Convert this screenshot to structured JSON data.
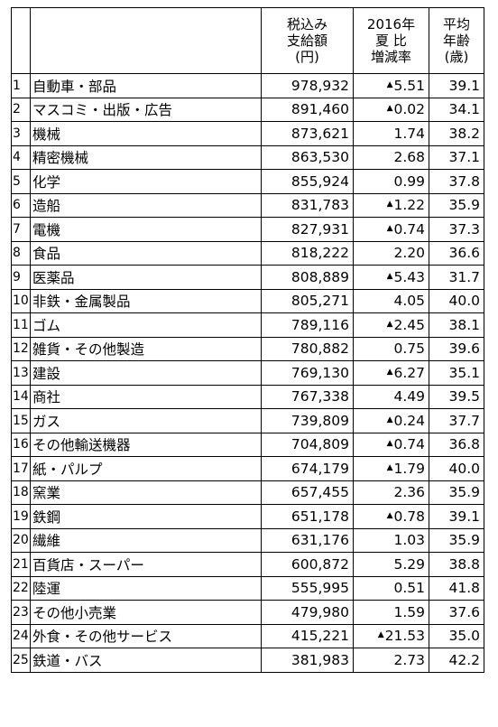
{
  "header": {
    "amount": [
      "税込み",
      "支給額",
      "(円)"
    ],
    "change": [
      "2016年",
      "夏 比",
      "増減率"
    ],
    "age": [
      "平均",
      "年齢",
      "(歳)"
    ]
  },
  "rows": [
    {
      "no": "1",
      "industry": "自動車・部品",
      "amount": "978,932",
      "neg": true,
      "change": "5.51",
      "age": "39.1"
    },
    {
      "no": "2",
      "industry": "マスコミ・出版・広告",
      "amount": "891,460",
      "neg": true,
      "change": "0.02",
      "age": "34.1"
    },
    {
      "no": "3",
      "industry": "機械",
      "amount": "873,621",
      "neg": false,
      "change": "1.74",
      "age": "38.2"
    },
    {
      "no": "4",
      "industry": "精密機械",
      "amount": "863,530",
      "neg": false,
      "change": "2.68",
      "age": "37.1"
    },
    {
      "no": "5",
      "industry": "化学",
      "amount": "855,924",
      "neg": false,
      "change": "0.99",
      "age": "37.8"
    },
    {
      "no": "6",
      "industry": "造船",
      "amount": "831,783",
      "neg": true,
      "change": "1.22",
      "age": "35.9"
    },
    {
      "no": "7",
      "industry": "電機",
      "amount": "827,931",
      "neg": true,
      "change": "0.74",
      "age": "37.3"
    },
    {
      "no": "8",
      "industry": "食品",
      "amount": "818,222",
      "neg": false,
      "change": "2.20",
      "age": "36.6"
    },
    {
      "no": "9",
      "industry": "医薬品",
      "amount": "808,889",
      "neg": true,
      "change": "5.43",
      "age": "31.7"
    },
    {
      "no": "10",
      "industry": "非鉄・金属製品",
      "amount": "805,271",
      "neg": false,
      "change": "4.05",
      "age": "40.0"
    },
    {
      "no": "11",
      "industry": "ゴム",
      "amount": "789,116",
      "neg": true,
      "change": "2.45",
      "age": "38.1"
    },
    {
      "no": "12",
      "industry": "雑貨・その他製造",
      "amount": "780,882",
      "neg": false,
      "change": "0.75",
      "age": "39.6"
    },
    {
      "no": "13",
      "industry": "建設",
      "amount": "769,130",
      "neg": true,
      "change": "6.27",
      "age": "35.1"
    },
    {
      "no": "14",
      "industry": "商社",
      "amount": "767,338",
      "neg": false,
      "change": "4.49",
      "age": "39.5"
    },
    {
      "no": "15",
      "industry": "ガス",
      "amount": "739,809",
      "neg": true,
      "change": "0.24",
      "age": "37.7"
    },
    {
      "no": "16",
      "industry": "その他輸送機器",
      "amount": "704,809",
      "neg": true,
      "change": "0.74",
      "age": "36.8"
    },
    {
      "no": "17",
      "industry": "紙・パルプ",
      "amount": "674,179",
      "neg": true,
      "change": "1.79",
      "age": "40.0"
    },
    {
      "no": "18",
      "industry": "窯業",
      "amount": "657,455",
      "neg": false,
      "change": "2.36",
      "age": "35.9"
    },
    {
      "no": "19",
      "industry": "鉄鋼",
      "amount": "651,178",
      "neg": true,
      "change": "0.78",
      "age": "39.1"
    },
    {
      "no": "20",
      "industry": "繊維",
      "amount": "631,176",
      "neg": false,
      "change": "1.03",
      "age": "35.9"
    },
    {
      "no": "21",
      "industry": "百貨店・スーパー",
      "amount": "600,872",
      "neg": false,
      "change": "5.29",
      "age": "38.8"
    },
    {
      "no": "22",
      "industry": "陸運",
      "amount": "555,995",
      "neg": false,
      "change": "0.51",
      "age": "41.8"
    },
    {
      "no": "23",
      "industry": "その他小売業",
      "amount": "479,980",
      "neg": false,
      "change": "1.59",
      "age": "37.6"
    },
    {
      "no": "24",
      "industry": "外食・その他サービス",
      "amount": "415,221",
      "neg": true,
      "change": "21.53",
      "age": "35.0"
    },
    {
      "no": "25",
      "industry": "鉄道・バス",
      "amount": "381,983",
      "neg": false,
      "change": "2.73",
      "age": "42.2"
    }
  ]
}
